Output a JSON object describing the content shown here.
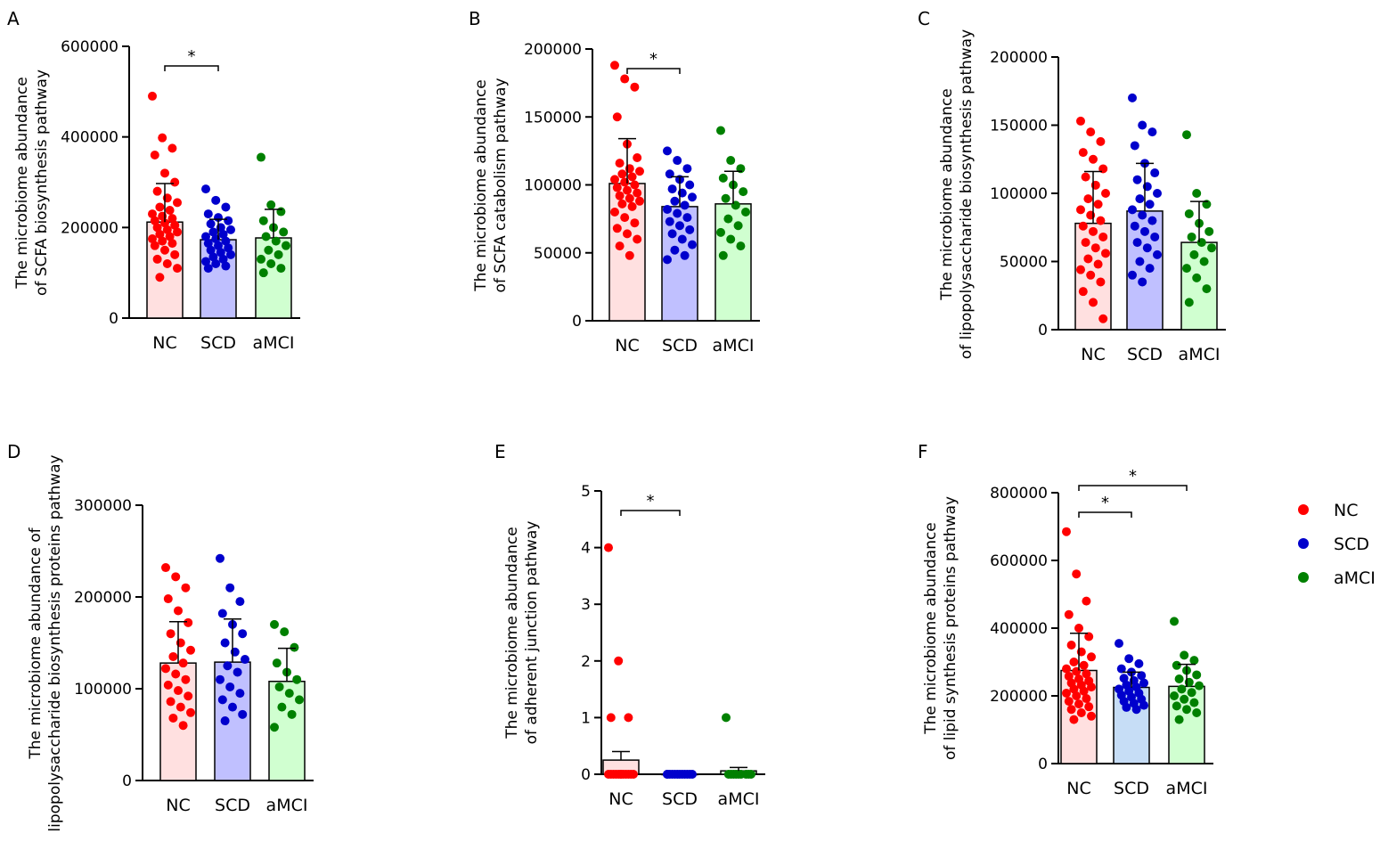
{
  "figure": {
    "groups": [
      "NC",
      "SCD",
      "aMCI"
    ],
    "colors": {
      "NC": "#ff0000",
      "SCD": "#0000cc",
      "aMCI": "#008000",
      "NC_fill": "#ffe0e0",
      "SCD_fill": "#c0c0ff",
      "aMCI_fill": "#d0ffd0",
      "SCD_fill_alt": "#c6ddf6"
    },
    "legend": {
      "entries": [
        {
          "label": "NC",
          "color": "#ff0000"
        },
        {
          "label": "SCD",
          "color": "#0000cc"
        },
        {
          "label": "aMCI",
          "color": "#008000"
        }
      ]
    }
  },
  "chart_data": [
    {
      "panel": "A",
      "type": "bar",
      "ylabel": "The microbiome abundance\nof SCFA biosynthesis pathway",
      "categories": [
        "NC",
        "SCD",
        "aMCI"
      ],
      "ylim": [
        0,
        600000
      ],
      "yticks": [
        0,
        200000,
        400000,
        600000
      ],
      "yticklabels": [
        "0",
        "200000",
        "400000",
        "600000"
      ],
      "series": [
        {
          "name": "NC",
          "mean": 212000,
          "sd": 85000,
          "points": [
            490000,
            398000,
            375000,
            360000,
            320000,
            300000,
            280000,
            265000,
            255000,
            245000,
            238000,
            230000,
            225000,
            220000,
            215000,
            210000,
            205000,
            200000,
            195000,
            190000,
            185000,
            180000,
            175000,
            170000,
            165000,
            160000,
            150000,
            140000,
            130000,
            120000,
            110000,
            90000
          ]
        },
        {
          "name": "SCD",
          "mean": 173000,
          "sd": 45000,
          "points": [
            285000,
            260000,
            245000,
            230000,
            222000,
            215000,
            208000,
            200000,
            195000,
            190000,
            185000,
            180000,
            175000,
            170000,
            165000,
            160000,
            155000,
            150000,
            145000,
            140000,
            135000,
            130000,
            125000,
            120000,
            115000,
            110000
          ]
        },
        {
          "name": "aMCI",
          "mean": 177000,
          "sd": 63000,
          "points": [
            355000,
            250000,
            235000,
            215000,
            200000,
            190000,
            180000,
            170000,
            160000,
            150000,
            140000,
            130000,
            120000,
            110000,
            100000
          ]
        }
      ],
      "significance": [
        {
          "from": "NC",
          "to": "SCD",
          "label": "*"
        }
      ]
    },
    {
      "panel": "B",
      "type": "bar",
      "ylabel": "The microbiome abundance\nof SCFA catabolism pathway",
      "categories": [
        "NC",
        "SCD",
        "aMCI"
      ],
      "ylim": [
        0,
        200000
      ],
      "yticks": [
        0,
        50000,
        100000,
        150000,
        200000
      ],
      "yticklabels": [
        "0",
        "50000",
        "100000",
        "150000",
        "200000"
      ],
      "series": [
        {
          "name": "NC",
          "mean": 101000,
          "sd": 33000,
          "points": [
            188000,
            178000,
            172000,
            150000,
            130000,
            120000,
            116000,
            112000,
            110000,
            108000,
            106000,
            104000,
            102000,
            100000,
            98000,
            96000,
            94000,
            92000,
            90000,
            88000,
            86000,
            84000,
            80000,
            76000,
            72000,
            68000,
            64000,
            60000,
            55000,
            48000
          ]
        },
        {
          "name": "SCD",
          "mean": 84000,
          "sd": 22000,
          "points": [
            125000,
            118000,
            112000,
            108000,
            104000,
            100000,
            97000,
            94000,
            91000,
            88000,
            85000,
            82000,
            79000,
            76000,
            73000,
            70000,
            67000,
            64000,
            60000,
            56000,
            52000,
            48000,
            45000
          ]
        },
        {
          "name": "aMCI",
          "mean": 86000,
          "sd": 24000,
          "points": [
            140000,
            118000,
            112000,
            105000,
            100000,
            95000,
            90000,
            85000,
            80000,
            75000,
            70000,
            65000,
            60000,
            55000,
            48000
          ]
        }
      ],
      "significance": [
        {
          "from": "NC",
          "to": "SCD",
          "label": "*"
        }
      ]
    },
    {
      "panel": "C",
      "type": "bar",
      "ylabel": "The microbiome abundance\nof lipopolysaccharide biosynthesis pathway",
      "categories": [
        "NC",
        "SCD",
        "aMCI"
      ],
      "ylim": [
        0,
        200000
      ],
      "yticks": [
        0,
        50000,
        100000,
        150000,
        200000
      ],
      "yticklabels": [
        "0",
        "50000",
        "100000",
        "150000",
        "200000"
      ],
      "series": [
        {
          "name": "NC",
          "mean": 78000,
          "sd": 38000,
          "points": [
            153000,
            145000,
            138000,
            130000,
            125000,
            118000,
            112000,
            106000,
            100000,
            96000,
            92000,
            88000,
            84000,
            80000,
            76000,
            72000,
            68000,
            64000,
            60000,
            56000,
            52000,
            48000,
            44000,
            40000,
            35000,
            28000,
            20000,
            8000
          ]
        },
        {
          "name": "SCD",
          "mean": 87000,
          "sd": 35000,
          "points": [
            170000,
            150000,
            145000,
            135000,
            122000,
            115000,
            110000,
            105000,
            100000,
            96000,
            92000,
            88000,
            84000,
            80000,
            76000,
            72000,
            68000,
            64000,
            60000,
            55000,
            50000,
            45000,
            40000,
            35000
          ]
        },
        {
          "name": "aMCI",
          "mean": 64000,
          "sd": 30000,
          "points": [
            143000,
            100000,
            92000,
            85000,
            78000,
            72000,
            68000,
            64000,
            60000,
            55000,
            50000,
            45000,
            38000,
            30000,
            20000
          ]
        }
      ],
      "significance": []
    },
    {
      "panel": "D",
      "type": "bar",
      "ylabel": "The microbiome abundance of\nlipopolysaccharide biosynthesis proteins pathway",
      "categories": [
        "NC",
        "SCD",
        "aMCI"
      ],
      "ylim": [
        0,
        300000
      ],
      "yticks": [
        0,
        100000,
        200000,
        300000
      ],
      "yticklabels": [
        "0",
        "100000",
        "200000",
        "300000"
      ],
      "series": [
        {
          "name": "NC",
          "mean": 128000,
          "sd": 45000,
          "points": [
            232000,
            222000,
            210000,
            198000,
            185000,
            172000,
            160000,
            150000,
            142000,
            135000,
            128000,
            122000,
            116000,
            110000,
            104000,
            98000,
            92000,
            86000,
            80000,
            74000,
            68000,
            60000
          ]
        },
        {
          "name": "SCD",
          "mean": 129000,
          "sd": 47000,
          "points": [
            242000,
            210000,
            195000,
            182000,
            170000,
            160000,
            150000,
            140000,
            132000,
            125000,
            118000,
            110000,
            102000,
            95000,
            88000,
            80000,
            72000,
            65000
          ]
        },
        {
          "name": "aMCI",
          "mean": 108000,
          "sd": 36000,
          "points": [
            170000,
            162000,
            145000,
            128000,
            118000,
            110000,
            102000,
            95000,
            88000,
            80000,
            72000,
            58000
          ]
        }
      ],
      "significance": []
    },
    {
      "panel": "E",
      "type": "bar",
      "ylabel": "The microbiome abundance\nof adherent junction pathway",
      "categories": [
        "NC",
        "SCD",
        "aMCI"
      ],
      "ylim": [
        0,
        5
      ],
      "yticks": [
        0,
        1,
        2,
        3,
        4,
        5
      ],
      "yticklabels": [
        "0",
        "1",
        "2",
        "3",
        "4",
        "5"
      ],
      "series": [
        {
          "name": "NC",
          "mean": 0.25,
          "sd": 0.15,
          "points": [
            4,
            2,
            1,
            1,
            0,
            0,
            0,
            0,
            0,
            0,
            0,
            0,
            0,
            0,
            0,
            0
          ]
        },
        {
          "name": "SCD",
          "mean": 0,
          "sd": 0,
          "points": [
            0,
            0,
            0,
            0,
            0,
            0,
            0,
            0,
            0,
            0,
            0,
            0
          ]
        },
        {
          "name": "aMCI",
          "mean": 0.06,
          "sd": 0.06,
          "points": [
            1,
            0,
            0,
            0,
            0,
            0,
            0,
            0,
            0,
            0
          ]
        }
      ],
      "significance": [
        {
          "from": "NC",
          "to": "SCD",
          "label": "*"
        }
      ]
    },
    {
      "panel": "F",
      "type": "bar",
      "ylabel": "The microbiome abundance\nof lipid synthesis proteins pathway",
      "categories": [
        "NC",
        "SCD",
        "aMCI"
      ],
      "ylim": [
        0,
        800000
      ],
      "yticks": [
        0,
        200000,
        400000,
        600000,
        800000
      ],
      "yticklabels": [
        "0",
        "200000",
        "400000",
        "600000",
        "800000"
      ],
      "series": [
        {
          "name": "NC",
          "mean": 275000,
          "sd": 110000,
          "points": [
            685000,
            560000,
            480000,
            440000,
            400000,
            375000,
            350000,
            330000,
            315000,
            300000,
            290000,
            280000,
            272000,
            265000,
            258000,
            250000,
            244000,
            238000,
            232000,
            226000,
            220000,
            214000,
            208000,
            200000,
            192000,
            184000,
            176000,
            168000,
            160000,
            150000,
            140000,
            130000
          ]
        },
        {
          "name": "SCD",
          "mean": 225000,
          "sd": 45000,
          "points": [
            355000,
            310000,
            295000,
            280000,
            270000,
            260000,
            252000,
            245000,
            238000,
            232000,
            226000,
            220000,
            214000,
            208000,
            202000,
            196000,
            190000,
            184000,
            178000,
            172000,
            166000,
            160000
          ]
        },
        {
          "name": "aMCI",
          "mean": 228000,
          "sd": 65000,
          "points": [
            420000,
            320000,
            305000,
            290000,
            275000,
            262000,
            250000,
            240000,
            230000,
            220000,
            210000,
            200000,
            190000,
            180000,
            170000,
            160000,
            150000,
            130000
          ]
        }
      ],
      "significance": [
        {
          "from": "NC",
          "to": "SCD",
          "label": "*"
        },
        {
          "from": "NC",
          "to": "aMCI",
          "label": "*"
        }
      ]
    }
  ]
}
